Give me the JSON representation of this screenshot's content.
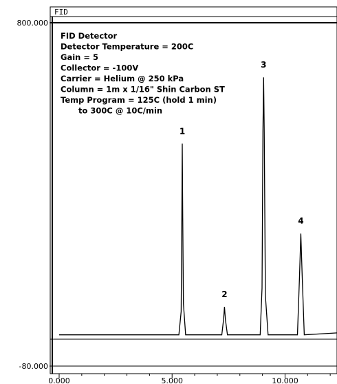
{
  "chart_data": {
    "type": "line",
    "title": "FID",
    "xlim": [
      0,
      12.3
    ],
    "ylim": [
      -80,
      800
    ],
    "x_ticks": [
      {
        "value": 0,
        "label": "0.000"
      },
      {
        "value": 5,
        "label": "5.000"
      },
      {
        "value": 10,
        "label": "10.000"
      }
    ],
    "y_ticks": [
      {
        "value": 800,
        "label": "800.000"
      },
      {
        "value": -80,
        "label": "-80.000"
      }
    ],
    "baseline": 0,
    "annotations": [
      "FID Detector",
      "Detector Temperature = 200C",
      "Gain = 5",
      "Collector = -100V",
      "Carrier = Helium @ 250 kPa",
      "Column = 1m x 1/16\" Shin Carbon ST",
      "Temp Program = 125C (hold 1 min)",
      "to 300C @ 10C/min"
    ],
    "peaks": [
      {
        "label": "1",
        "x": 5.45,
        "height": 490
      },
      {
        "label": "2",
        "x": 7.32,
        "height": 72
      },
      {
        "label": "3",
        "x": 9.05,
        "height": 660
      },
      {
        "label": "4",
        "x": 10.7,
        "height": 260
      }
    ],
    "series": [
      {
        "x": [
          0,
          5.3,
          5.4,
          5.43,
          5.45,
          5.47,
          5.5,
          5.6,
          7.2,
          7.28,
          7.32,
          7.36,
          7.45,
          8.9,
          8.98,
          9.02,
          9.05,
          9.08,
          9.13,
          9.25,
          10.55,
          10.64,
          10.7,
          10.76,
          10.85,
          12.3
        ],
        "y": [
          0,
          0,
          60,
          300,
          490,
          300,
          80,
          0,
          0,
          40,
          72,
          40,
          0,
          0,
          120,
          520,
          660,
          520,
          100,
          0,
          0,
          150,
          260,
          150,
          0,
          5
        ]
      }
    ]
  }
}
